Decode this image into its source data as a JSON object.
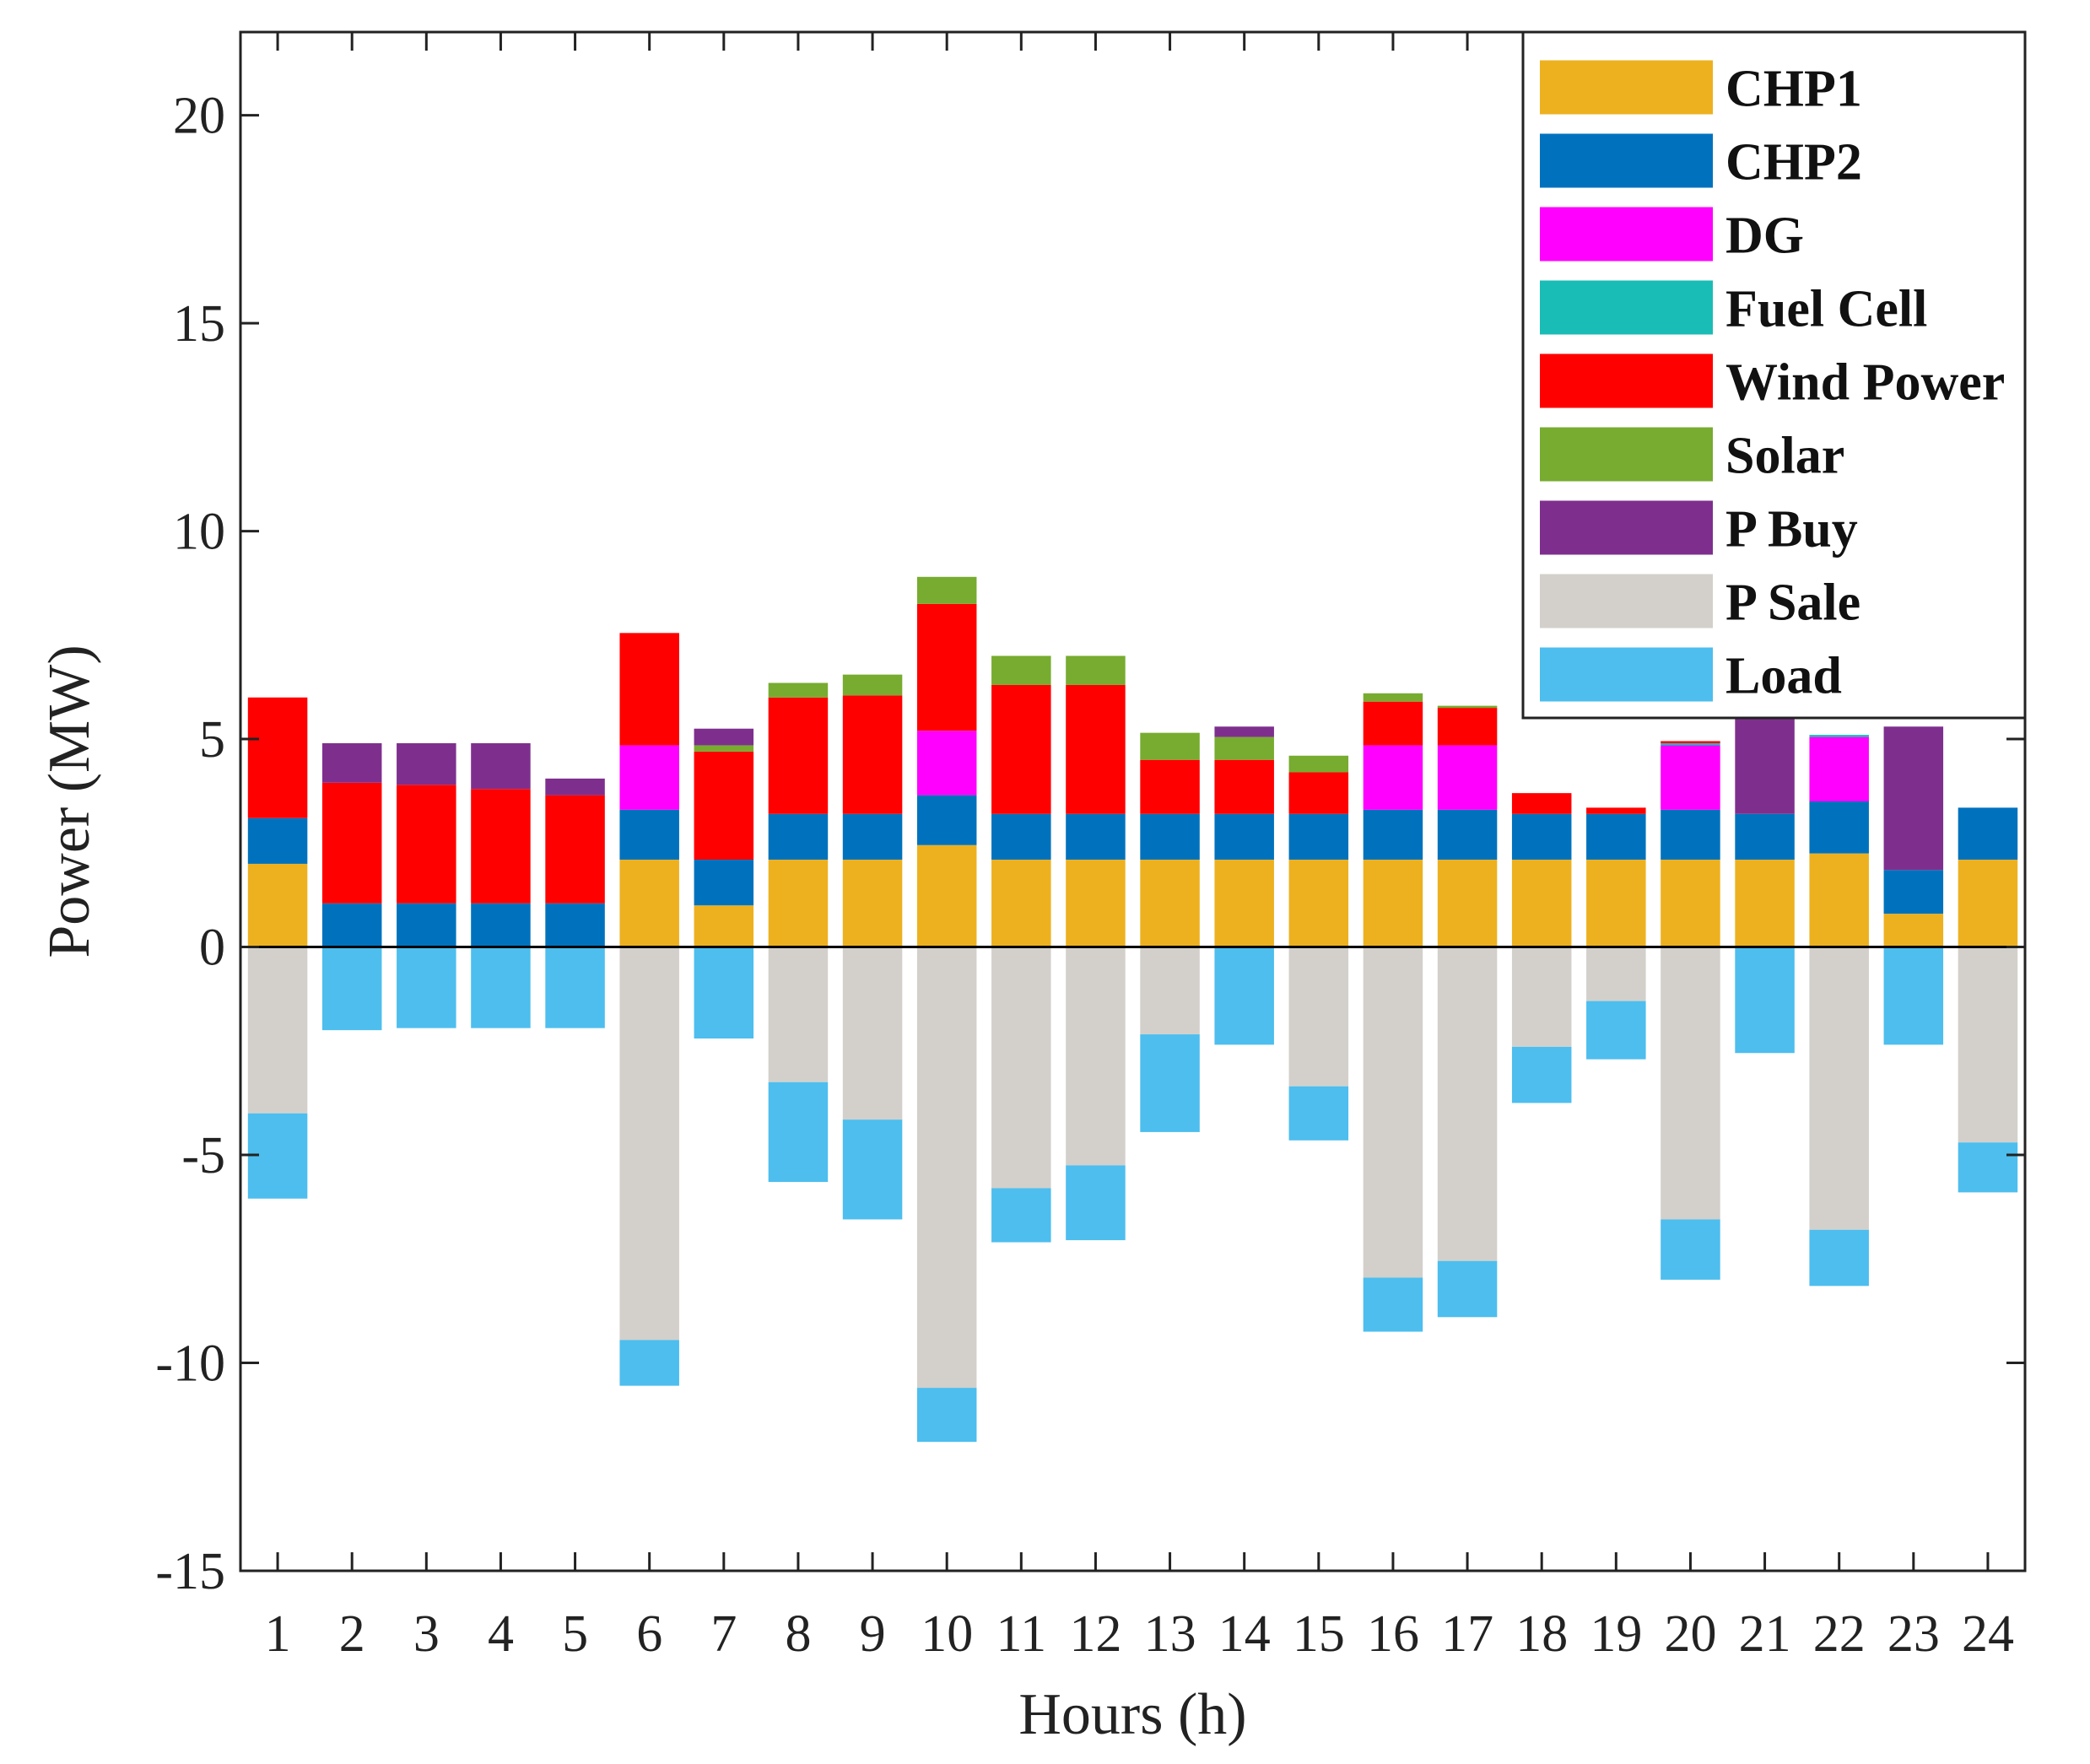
{
  "chart_data": {
    "type": "bar",
    "stacked": true,
    "title": "",
    "xlabel": "Hours (h)",
    "ylabel": "Power (MW)",
    "ylim": [
      -15,
      22
    ],
    "yticks": [
      20,
      15,
      10,
      5,
      0,
      -5,
      -10,
      -15
    ],
    "ytick_labels": [
      "20",
      "15",
      "10",
      "5",
      "0",
      "-5",
      "-10",
      "-15"
    ],
    "categories": [
      "1",
      "2",
      "3",
      "4",
      "5",
      "6",
      "7",
      "8",
      "9",
      "10",
      "11",
      "12",
      "13",
      "14",
      "15",
      "16",
      "17",
      "18",
      "19",
      "20",
      "21",
      "22",
      "23",
      "24"
    ],
    "legend_position": "top-right",
    "series": [
      {
        "name": "CHP1",
        "color": "#EDB120",
        "values": [
          2.0,
          0,
          0,
          0,
          0,
          2.1,
          1.0,
          2.1,
          2.1,
          2.45,
          2.1,
          2.1,
          2.1,
          2.1,
          2.1,
          2.1,
          2.1,
          2.1,
          2.1,
          2.1,
          2.1,
          2.25,
          0.8,
          2.1
        ]
      },
      {
        "name": "CHP2",
        "color": "#0072BD",
        "values": [
          1.1,
          1.05,
          1.05,
          1.05,
          1.05,
          1.2,
          1.1,
          1.1,
          1.1,
          1.2,
          1.1,
          1.1,
          1.1,
          1.1,
          1.1,
          1.2,
          1.2,
          1.1,
          1.1,
          1.2,
          1.1,
          1.25,
          1.05,
          1.25
        ]
      },
      {
        "name": "DG",
        "color": "#FF00FF",
        "values": [
          0,
          0,
          0,
          0,
          0,
          1.55,
          0,
          0,
          0,
          1.55,
          0,
          0,
          0,
          0,
          0,
          1.55,
          1.55,
          0,
          0,
          1.55,
          0,
          1.55,
          0,
          0
        ]
      },
      {
        "name": "Fuel Cell",
        "color": "#1ABDB5",
        "values": [
          0,
          0,
          0,
          0,
          0,
          0,
          0,
          0,
          0,
          0,
          0,
          0,
          0,
          0,
          0,
          0,
          0,
          0,
          0,
          0.05,
          0,
          0.05,
          0,
          0
        ]
      },
      {
        "name": "Wind Power",
        "color": "#FF0000",
        "values": [
          2.9,
          2.9,
          2.85,
          2.75,
          2.6,
          2.7,
          2.6,
          2.8,
          2.85,
          3.05,
          3.1,
          3.1,
          1.3,
          1.3,
          1.0,
          1.05,
          0.9,
          0.5,
          0.15,
          0.05,
          0,
          0,
          0,
          0
        ]
      },
      {
        "name": "Solar",
        "color": "#77AC30",
        "values": [
          0,
          0,
          0,
          0,
          0,
          0,
          0.15,
          0.35,
          0.5,
          0.65,
          0.7,
          0.7,
          0.65,
          0.55,
          0.4,
          0.2,
          0.05,
          0,
          0,
          0,
          0,
          0,
          0,
          0
        ]
      },
      {
        "name": "P Buy",
        "color": "#7E2F8E",
        "values": [
          0,
          0.95,
          1.0,
          1.1,
          0.4,
          0,
          0.4,
          0,
          0,
          0,
          0,
          0,
          0,
          0.25,
          0,
          0,
          0,
          0,
          0,
          0,
          2.4,
          0,
          3.45,
          0
        ]
      },
      {
        "name": "P Sale",
        "color": "#D3D0CB",
        "values": [
          -4.0,
          0,
          0,
          0,
          0,
          -9.45,
          0,
          -3.25,
          -4.15,
          -10.6,
          -5.8,
          -5.25,
          -2.1,
          0,
          -3.35,
          -7.95,
          -7.55,
          -2.4,
          -1.3,
          -6.55,
          0,
          -6.8,
          0,
          -4.7
        ]
      },
      {
        "name": "Load",
        "color": "#4DBEEE",
        "values": [
          -2.05,
          -2.0,
          -1.95,
          -1.95,
          -1.95,
          -1.1,
          -2.2,
          -2.4,
          -2.4,
          -1.3,
          -1.3,
          -1.8,
          -2.35,
          -2.35,
          -1.3,
          -1.3,
          -1.35,
          -1.35,
          -1.4,
          -1.45,
          -2.55,
          -1.35,
          -2.35,
          -1.2
        ]
      }
    ]
  }
}
